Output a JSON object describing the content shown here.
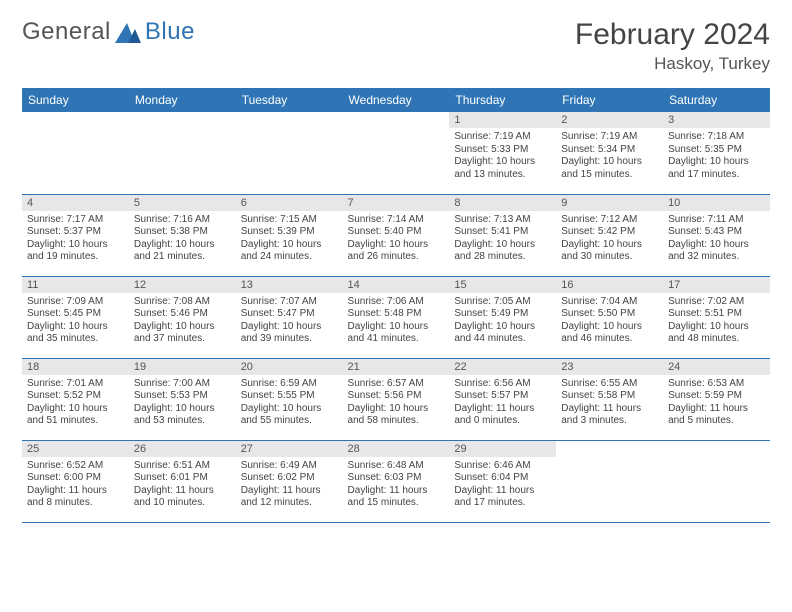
{
  "logo": {
    "word1": "General",
    "word2": "Blue"
  },
  "title": "February 2024",
  "location": "Haskoy, Turkey",
  "columns": [
    "Sunday",
    "Monday",
    "Tuesday",
    "Wednesday",
    "Thursday",
    "Friday",
    "Saturday"
  ],
  "colors": {
    "header_bg": "#2f75b5",
    "header_fg": "#ffffff",
    "daynum_bg": "#e7e7e7",
    "border": "#2f75b5"
  },
  "weeks": [
    [
      null,
      null,
      null,
      null,
      {
        "n": "1",
        "sr": "7:19 AM",
        "ss": "5:33 PM",
        "dl": "10 hours and 13 minutes."
      },
      {
        "n": "2",
        "sr": "7:19 AM",
        "ss": "5:34 PM",
        "dl": "10 hours and 15 minutes."
      },
      {
        "n": "3",
        "sr": "7:18 AM",
        "ss": "5:35 PM",
        "dl": "10 hours and 17 minutes."
      }
    ],
    [
      {
        "n": "4",
        "sr": "7:17 AM",
        "ss": "5:37 PM",
        "dl": "10 hours and 19 minutes."
      },
      {
        "n": "5",
        "sr": "7:16 AM",
        "ss": "5:38 PM",
        "dl": "10 hours and 21 minutes."
      },
      {
        "n": "6",
        "sr": "7:15 AM",
        "ss": "5:39 PM",
        "dl": "10 hours and 24 minutes."
      },
      {
        "n": "7",
        "sr": "7:14 AM",
        "ss": "5:40 PM",
        "dl": "10 hours and 26 minutes."
      },
      {
        "n": "8",
        "sr": "7:13 AM",
        "ss": "5:41 PM",
        "dl": "10 hours and 28 minutes."
      },
      {
        "n": "9",
        "sr": "7:12 AM",
        "ss": "5:42 PM",
        "dl": "10 hours and 30 minutes."
      },
      {
        "n": "10",
        "sr": "7:11 AM",
        "ss": "5:43 PM",
        "dl": "10 hours and 32 minutes."
      }
    ],
    [
      {
        "n": "11",
        "sr": "7:09 AM",
        "ss": "5:45 PM",
        "dl": "10 hours and 35 minutes."
      },
      {
        "n": "12",
        "sr": "7:08 AM",
        "ss": "5:46 PM",
        "dl": "10 hours and 37 minutes."
      },
      {
        "n": "13",
        "sr": "7:07 AM",
        "ss": "5:47 PM",
        "dl": "10 hours and 39 minutes."
      },
      {
        "n": "14",
        "sr": "7:06 AM",
        "ss": "5:48 PM",
        "dl": "10 hours and 41 minutes."
      },
      {
        "n": "15",
        "sr": "7:05 AM",
        "ss": "5:49 PM",
        "dl": "10 hours and 44 minutes."
      },
      {
        "n": "16",
        "sr": "7:04 AM",
        "ss": "5:50 PM",
        "dl": "10 hours and 46 minutes."
      },
      {
        "n": "17",
        "sr": "7:02 AM",
        "ss": "5:51 PM",
        "dl": "10 hours and 48 minutes."
      }
    ],
    [
      {
        "n": "18",
        "sr": "7:01 AM",
        "ss": "5:52 PM",
        "dl": "10 hours and 51 minutes."
      },
      {
        "n": "19",
        "sr": "7:00 AM",
        "ss": "5:53 PM",
        "dl": "10 hours and 53 minutes."
      },
      {
        "n": "20",
        "sr": "6:59 AM",
        "ss": "5:55 PM",
        "dl": "10 hours and 55 minutes."
      },
      {
        "n": "21",
        "sr": "6:57 AM",
        "ss": "5:56 PM",
        "dl": "10 hours and 58 minutes."
      },
      {
        "n": "22",
        "sr": "6:56 AM",
        "ss": "5:57 PM",
        "dl": "11 hours and 0 minutes."
      },
      {
        "n": "23",
        "sr": "6:55 AM",
        "ss": "5:58 PM",
        "dl": "11 hours and 3 minutes."
      },
      {
        "n": "24",
        "sr": "6:53 AM",
        "ss": "5:59 PM",
        "dl": "11 hours and 5 minutes."
      }
    ],
    [
      {
        "n": "25",
        "sr": "6:52 AM",
        "ss": "6:00 PM",
        "dl": "11 hours and 8 minutes."
      },
      {
        "n": "26",
        "sr": "6:51 AM",
        "ss": "6:01 PM",
        "dl": "11 hours and 10 minutes."
      },
      {
        "n": "27",
        "sr": "6:49 AM",
        "ss": "6:02 PM",
        "dl": "11 hours and 12 minutes."
      },
      {
        "n": "28",
        "sr": "6:48 AM",
        "ss": "6:03 PM",
        "dl": "11 hours and 15 minutes."
      },
      {
        "n": "29",
        "sr": "6:46 AM",
        "ss": "6:04 PM",
        "dl": "11 hours and 17 minutes."
      },
      null,
      null
    ]
  ],
  "labels": {
    "sunrise": "Sunrise: ",
    "sunset": "Sunset: ",
    "daylight": "Daylight: "
  }
}
